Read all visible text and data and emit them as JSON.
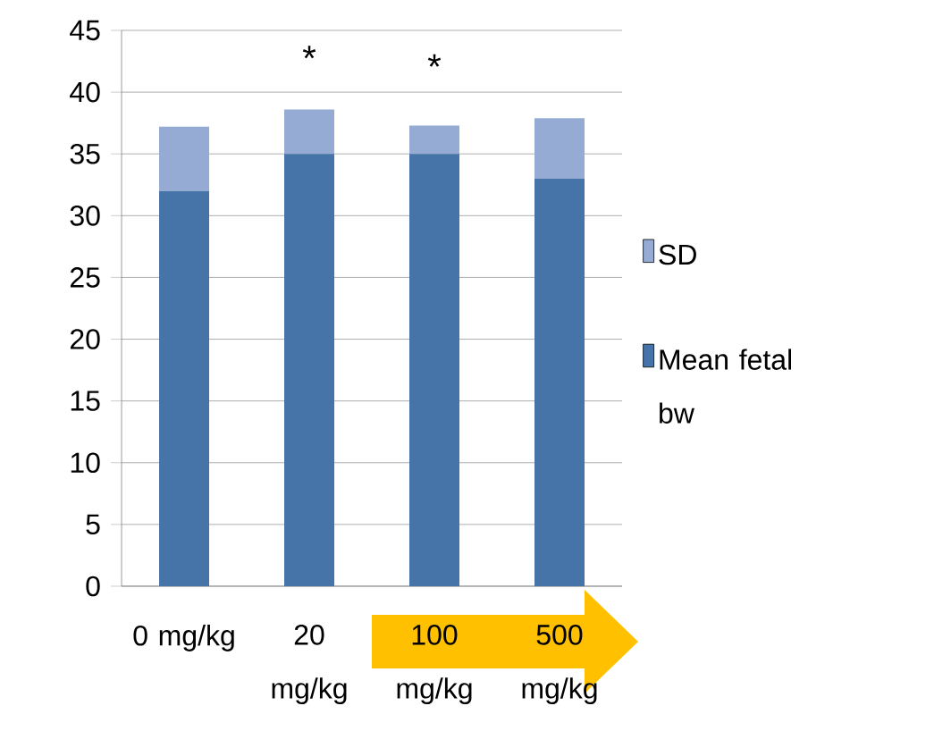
{
  "chart_data": {
    "type": "bar",
    "stacked": true,
    "categories": [
      "0 mg/kg",
      "20 mg/kg",
      "100 mg/kg",
      "500 mg/kg"
    ],
    "series": [
      {
        "name": "Mean fetal bw",
        "color": "#4674a9",
        "values": [
          32,
          35,
          35,
          33
        ]
      },
      {
        "name": "SD",
        "color": "#95abd4",
        "values": [
          5.2,
          3.6,
          2.3,
          4.9
        ]
      }
    ],
    "ylim": [
      0,
      45
    ],
    "yticks": [
      0,
      5,
      10,
      15,
      20,
      25,
      30,
      35,
      40,
      45
    ],
    "grid": "y",
    "legend": "right",
    "annotations": [
      "*",
      "*"
    ]
  }
}
